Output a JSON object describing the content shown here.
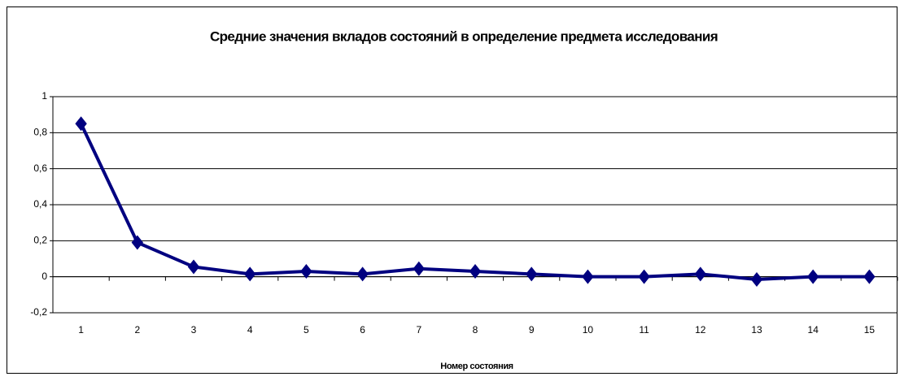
{
  "chart_data": {
    "type": "line",
    "title": "Средние значения вкладов состояний в определение предмета исследования",
    "x_label": "Номер состояния",
    "categories": [
      "1",
      "2",
      "3",
      "4",
      "5",
      "6",
      "7",
      "8",
      "9",
      "10",
      "11",
      "12",
      "13",
      "14",
      "15"
    ],
    "series": [
      {
        "name": "Средние значения",
        "color": "#000080",
        "values": [
          0.85,
          0.19,
          0.055,
          0.015,
          0.03,
          0.015,
          0.045,
          0.03,
          0.015,
          0,
          0,
          0.015,
          -0.015,
          0,
          0
        ]
      }
    ],
    "ylim": [
      -0.2,
      1
    ],
    "yticks": [
      {
        "value": -0.2,
        "label": "-0,2"
      },
      0,
      {
        "value": 0.2,
        "label": "0,2"
      },
      {
        "value": 0.4,
        "label": "0,4"
      },
      {
        "value": 0.6,
        "label": "0,6"
      },
      {
        "value": 0.8,
        "label": "0,8"
      },
      1
    ],
    "grid": true
  }
}
